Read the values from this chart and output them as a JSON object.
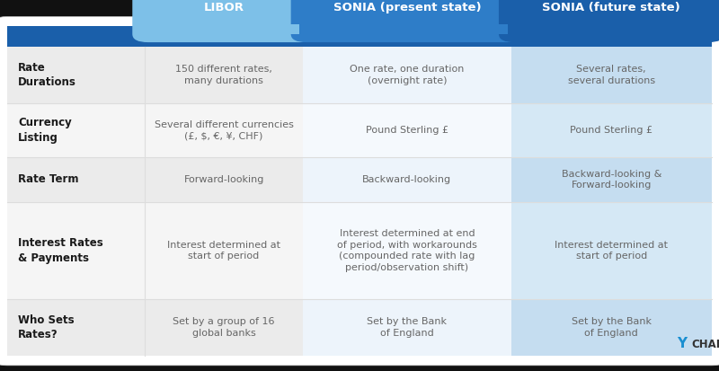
{
  "header_row": [
    "LIBOR",
    "SONIA (present state)",
    "SONIA (future state)"
  ],
  "row_labels": [
    "Rate\nDurations",
    "Currency\nListing",
    "Rate Term",
    "Interest Rates\n& Payments",
    "Who Sets\nRates?"
  ],
  "cell_data": [
    [
      "150 different rates,\nmany durations",
      "One rate, one duration\n(overnight rate)",
      "Several rates,\nseveral durations"
    ],
    [
      "Several different currencies\n(£, $, €, ¥, CHF)",
      "Pound Sterling £",
      "Pound Sterling £"
    ],
    [
      "Forward-looking",
      "Backward-looking",
      "Backward-looking &\nForward-looking"
    ],
    [
      "Interest determined at\nstart of period",
      "Interest determined at end\nof period, with workarounds\n(compounded rate with lag\nperiod/observation shift)",
      "Interest determined at\nstart of period"
    ],
    [
      "Set by a group of 16\nglobal banks",
      "Set by the Bank\nof England",
      "Set by the Bank\nof England"
    ]
  ],
  "header_bg_colors": [
    "#7dc0e8",
    "#2e7dc8",
    "#1a5faa"
  ],
  "header_text_color": "#ffffff",
  "row_label_text_color": "#1a1a1a",
  "label_col_bg": "#f0f0f0",
  "col1_bg": "#f0f0f0",
  "col2_bg": "#f5f9fe",
  "col3_bg": "#d6e8f5",
  "col3_alt_bg": "#c8dff0",
  "divider_bar_color": "#1a5faa",
  "cell_text_color": "#666666",
  "grid_line_color": "#dddddd",
  "body_bg": "#ffffff",
  "ycharts_y_color": "#1a8fd1",
  "ycharts_charts_color": "#333333",
  "figsize": [
    8.0,
    4.13
  ],
  "dpi": 100
}
